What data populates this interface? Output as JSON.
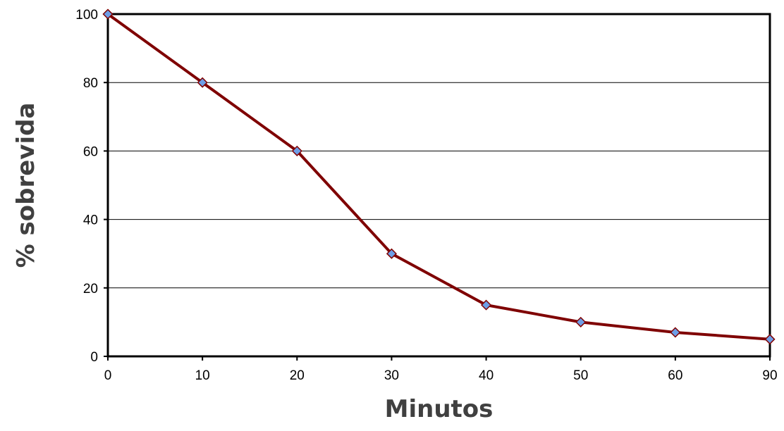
{
  "chart_data": {
    "type": "line",
    "title": "",
    "xlabel": "Minutos",
    "ylabel": "% sobrevida",
    "categories": [
      "0",
      "10",
      "20",
      "30",
      "40",
      "50",
      "60",
      "90"
    ],
    "series": [
      {
        "values": [
          100,
          80,
          60,
          30,
          15,
          10,
          7,
          5
        ]
      }
    ],
    "ylim": [
      0,
      100
    ],
    "yticks": [
      0,
      20,
      40,
      60,
      80,
      100
    ],
    "grid": "horizontal",
    "legend": "none",
    "colors": {
      "line": "#7f0000",
      "marker_fill": "#6e9ee6",
      "marker_stroke": "#7f0000",
      "grid": "#000000",
      "plot_border": "#000000"
    }
  }
}
